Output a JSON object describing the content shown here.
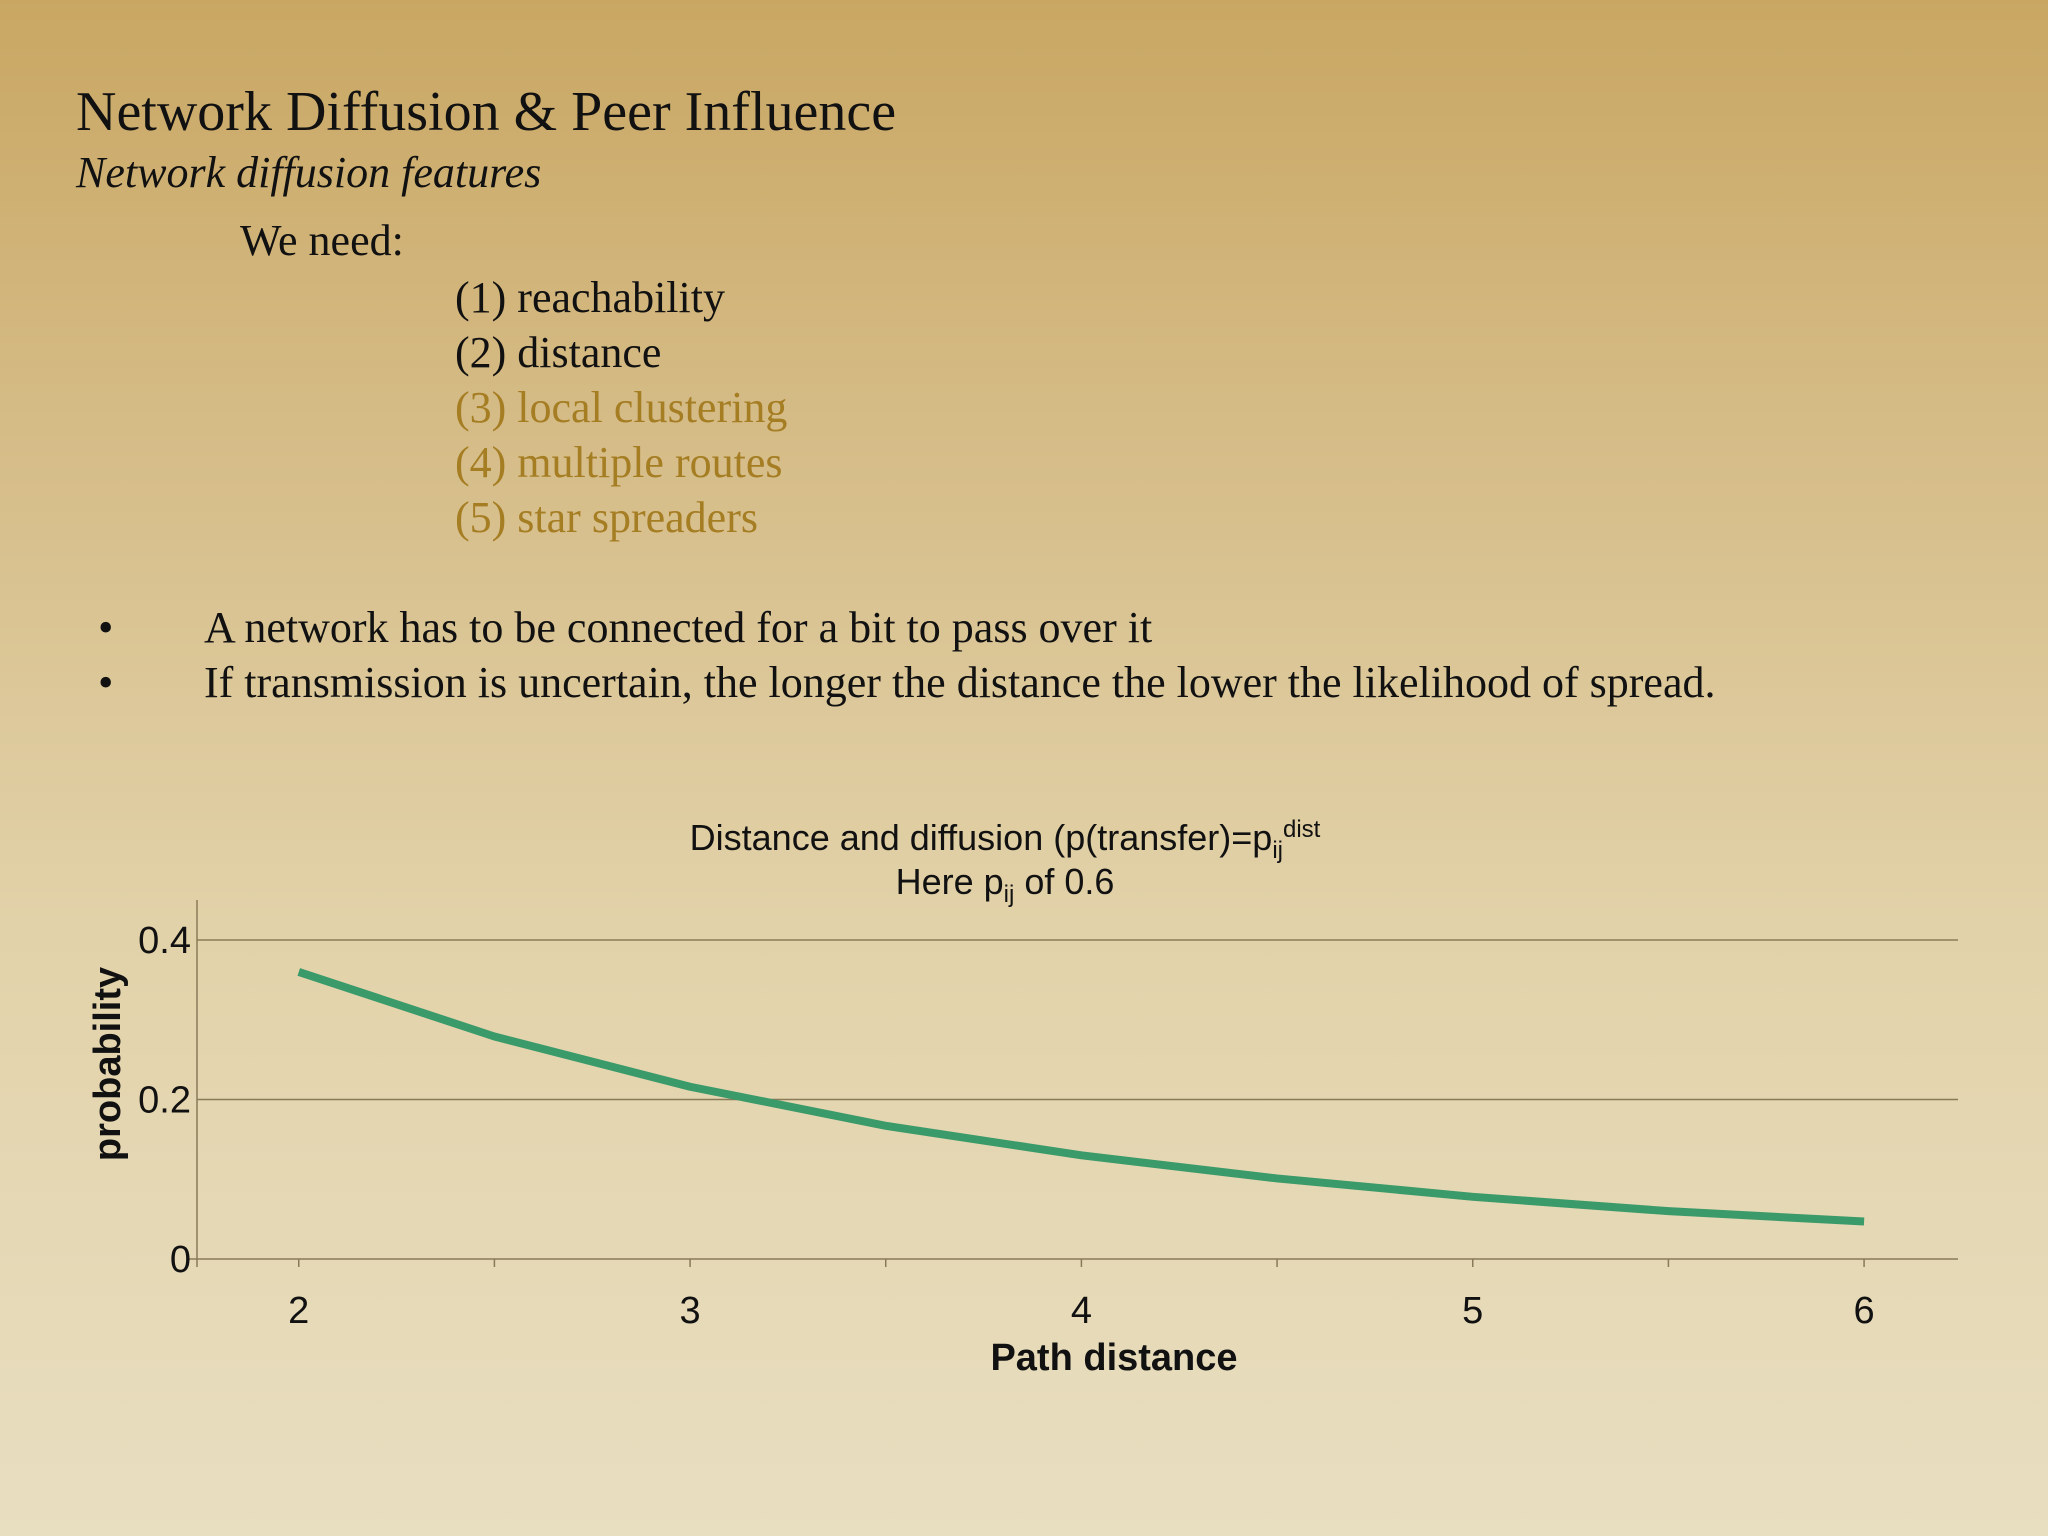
{
  "slide": {
    "title": "Network Diffusion & Peer Influence",
    "subtitle": "Network diffusion features",
    "needs_intro": "We need:",
    "needs": [
      {
        "text": "(1) reachability",
        "color": "#111111"
      },
      {
        "text": "(2) distance",
        "color": "#111111"
      },
      {
        "text": "(3) local clustering",
        "color": "#a57d22"
      },
      {
        "text": "(4) multiple routes",
        "color": "#a57d22"
      },
      {
        "text": "(5) star spreaders",
        "color": "#a57d22"
      }
    ],
    "bullet_glyph": "•",
    "bullets": [
      "A network has to be connected for a bit to pass over it",
      "If transmission is uncertain, the longer the distance the lower the likelihood of spread."
    ]
  },
  "chart_data": {
    "type": "line",
    "title_line1": {
      "pre": "Distance and diffusion (p(transfer)=p",
      "sub": "ij",
      "sup": "dist"
    },
    "title_line2": {
      "pre": "Here p",
      "sub": "ij",
      "post": " of 0.6"
    },
    "xlabel": "Path distance",
    "ylabel": "probability",
    "x": [
      2,
      2.5,
      3,
      3.5,
      4,
      4.5,
      5,
      5.5,
      6
    ],
    "y": [
      0.36,
      0.279,
      0.216,
      0.167,
      0.13,
      0.101,
      0.078,
      0.06,
      0.047
    ],
    "xlim": [
      1.74,
      6.24
    ],
    "ylim": [
      0,
      0.4
    ],
    "xticks": [
      "2",
      "3",
      "4",
      "5",
      "6"
    ],
    "yticks": [
      "0",
      "0.2",
      "0.4"
    ],
    "line_color": "#3a9a6a",
    "grid": true
  }
}
